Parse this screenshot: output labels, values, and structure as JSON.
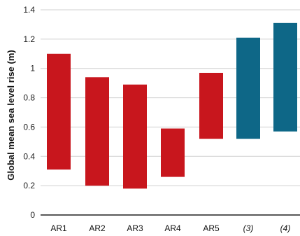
{
  "chart_data": {
    "type": "bar",
    "subtype": "floating-range",
    "ylabel": "Global mean sea level rise (m)",
    "xlabel": "",
    "ylim": [
      0,
      1.4
    ],
    "yticks": [
      0,
      0.2,
      0.4,
      0.6,
      0.8,
      1,
      1.2,
      1.4
    ],
    "ytick_labels": [
      "0",
      "0.2",
      "0.4",
      "0.6",
      "0.8",
      "1",
      "1.2",
      "1.4"
    ],
    "grid": true,
    "categories": [
      "AR1",
      "AR2",
      "AR3",
      "AR4",
      "AR5",
      "(3)",
      "(4)"
    ],
    "category_italic": [
      false,
      false,
      false,
      false,
      false,
      true,
      true
    ],
    "ranges": [
      {
        "low": 0.31,
        "high": 1.1
      },
      {
        "low": 0.2,
        "high": 0.94
      },
      {
        "low": 0.18,
        "high": 0.89
      },
      {
        "low": 0.26,
        "high": 0.59
      },
      {
        "low": 0.52,
        "high": 0.97
      },
      {
        "low": 0.52,
        "high": 1.21
      },
      {
        "low": 0.57,
        "high": 1.31
      }
    ],
    "colors": {
      "ipcc": "#c8161d",
      "other": "#0e6787",
      "grid": "#d0d0d0",
      "axis": "#222222"
    },
    "bar_color_keys": [
      "ipcc",
      "ipcc",
      "ipcc",
      "ipcc",
      "ipcc",
      "other",
      "other"
    ]
  }
}
